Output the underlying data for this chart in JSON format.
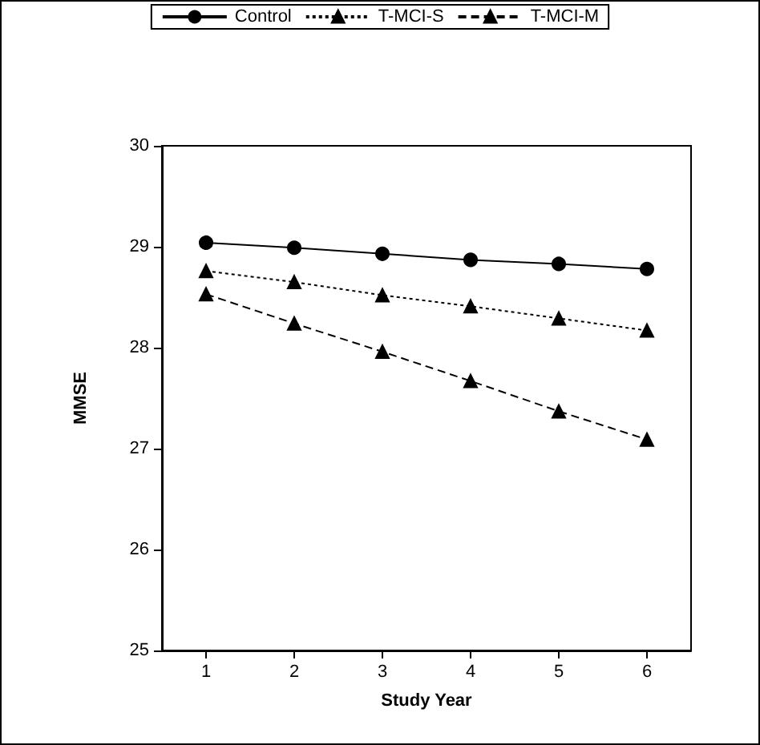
{
  "chart_data": {
    "type": "line",
    "xlabel": "Study Year",
    "ylabel": "MMSE",
    "x": [
      1,
      2,
      3,
      4,
      5,
      6
    ],
    "xlim": [
      0.5,
      6.5
    ],
    "xticks": [
      1,
      2,
      3,
      4,
      5,
      6
    ],
    "ylim": [
      25,
      30
    ],
    "yticks": [
      25,
      26,
      27,
      28,
      29,
      30
    ],
    "series": [
      {
        "name": "Control",
        "color": "#000000",
        "values": [
          29.04,
          28.99,
          28.93,
          28.87,
          28.83,
          28.78
        ],
        "marker": "circle",
        "line_style": "solid"
      },
      {
        "name": "T-MCI-S",
        "color": "#000000",
        "values": [
          28.76,
          28.65,
          28.52,
          28.41,
          28.29,
          28.17
        ],
        "marker": "triangle",
        "line_style": "dotted"
      },
      {
        "name": "T-MCI-M",
        "color": "#000000",
        "values": [
          28.53,
          28.24,
          27.96,
          27.67,
          27.37,
          27.09
        ],
        "marker": "triangle",
        "line_style": "dashed"
      }
    ],
    "legend": "top",
    "grid": false
  }
}
